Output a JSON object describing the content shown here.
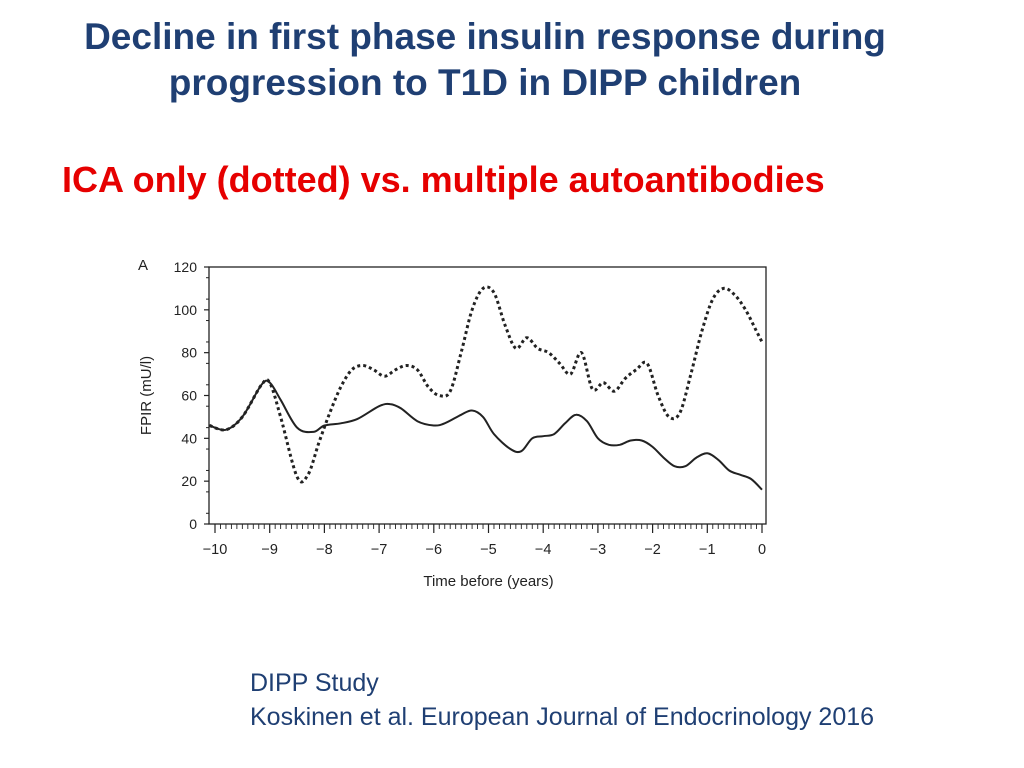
{
  "slide": {
    "title_line1": "Decline in first phase insulin response during",
    "title_line2": "progression to T1D in DIPP children",
    "subtitle": "ICA only (dotted) vs. multiple autoantibodies",
    "source_line1": "DIPP Study",
    "source_line2": "Koskinen et al.  European Journal of Endocrinology 2016"
  },
  "colors": {
    "title": "#1f3f73",
    "subtitle": "#e60000",
    "series_line": "#222222"
  },
  "chart_data": {
    "type": "line",
    "panel_label": "A",
    "xlabel": "Time before (years)",
    "ylabel": "FPIR (mU/l)",
    "xlim": [
      -10,
      0
    ],
    "ylim": [
      0,
      120
    ],
    "x_ticks": [
      "−10",
      "−9",
      "−8",
      "−7",
      "−6",
      "−5",
      "−4",
      "−3",
      "−2",
      "−1",
      "0"
    ],
    "y_ticks": [
      "0",
      "20",
      "40",
      "60",
      "80",
      "100",
      "120"
    ],
    "series": [
      {
        "name": "Multiple autoantibodies",
        "style": "solid",
        "x": [
          -10.1,
          -9.8,
          -9.5,
          -9.15,
          -9.0,
          -8.8,
          -8.5,
          -8.2,
          -8.0,
          -7.7,
          -7.4,
          -7.0,
          -6.8,
          -6.6,
          -6.3,
          -6.0,
          -5.8,
          -5.5,
          -5.3,
          -5.1,
          -4.9,
          -4.6,
          -4.4,
          -4.2,
          -4.0,
          -3.8,
          -3.6,
          -3.4,
          -3.2,
          -3.0,
          -2.8,
          -2.6,
          -2.4,
          -2.2,
          -2.0,
          -1.8,
          -1.6,
          -1.4,
          -1.2,
          -1.0,
          -0.8,
          -0.6,
          -0.4,
          -0.2,
          0.0
        ],
        "values": [
          46,
          44,
          50,
          65,
          66,
          58,
          45,
          43,
          46,
          47,
          49,
          55,
          56,
          54,
          48,
          46,
          47,
          51,
          53,
          50,
          42,
          35,
          34,
          40,
          41,
          42,
          47,
          51,
          48,
          40,
          37,
          37,
          39,
          39,
          36,
          31,
          27,
          27,
          31,
          33,
          30,
          25,
          23,
          21,
          16
        ]
      },
      {
        "name": "ICA only",
        "style": "dotted",
        "x": [
          -10.1,
          -9.8,
          -9.5,
          -9.15,
          -9.0,
          -8.8,
          -8.5,
          -8.3,
          -8.1,
          -7.9,
          -7.7,
          -7.5,
          -7.3,
          -7.1,
          -6.9,
          -6.7,
          -6.5,
          -6.3,
          -6.1,
          -5.9,
          -5.7,
          -5.5,
          -5.3,
          -5.1,
          -4.9,
          -4.7,
          -4.5,
          -4.3,
          -4.1,
          -3.9,
          -3.7,
          -3.5,
          -3.3,
          -3.1,
          -2.9,
          -2.7,
          -2.5,
          -2.3,
          -2.1,
          -1.9,
          -1.7,
          -1.5,
          -1.3,
          -1.1,
          -0.9,
          -0.7,
          -0.5,
          -0.3,
          -0.1,
          0.0
        ],
        "values": [
          46,
          44,
          50,
          65,
          66,
          50,
          22,
          23,
          38,
          52,
          64,
          72,
          74,
          72,
          69,
          72,
          74,
          72,
          64,
          60,
          62,
          80,
          100,
          110,
          108,
          93,
          82,
          87,
          82,
          80,
          75,
          70,
          80,
          63,
          66,
          62,
          68,
          72,
          75,
          60,
          50,
          52,
          70,
          90,
          105,
          110,
          107,
          100,
          90,
          85
        ]
      }
    ]
  }
}
